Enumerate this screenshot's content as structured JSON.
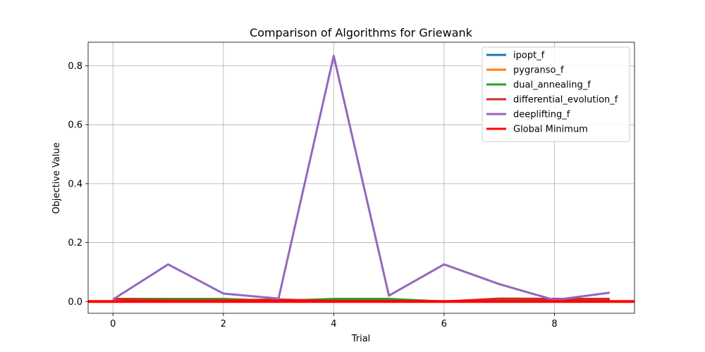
{
  "chart_data": {
    "type": "line",
    "title": "Comparison of Algorithms for Griewank",
    "xlabel": "Trial",
    "ylabel": "Objective Value",
    "xlim": [
      -0.45,
      9.45
    ],
    "ylim": [
      -0.04,
      0.88
    ],
    "xticks": [
      0,
      2,
      4,
      6,
      8
    ],
    "yticks": [
      0.0,
      0.2,
      0.4,
      0.6,
      0.8
    ],
    "xtick_labels": [
      "0",
      "2",
      "4",
      "6",
      "8"
    ],
    "ytick_labels": [
      "0.0",
      "0.2",
      "0.4",
      "0.6",
      "0.8"
    ],
    "grid": true,
    "legend_position": "top-right",
    "x": [
      0,
      1,
      2,
      3,
      4,
      5,
      6,
      7,
      8,
      9
    ],
    "series": [
      {
        "name": "ipopt_f",
        "color": "#1f77b4",
        "values": [
          0,
          0,
          0,
          0,
          0,
          0,
          0,
          0,
          0,
          0
        ]
      },
      {
        "name": "pygranso_f",
        "color": "#ff7f0e",
        "values": [
          0,
          0,
          0,
          0,
          0,
          0,
          0,
          0,
          0,
          0
        ]
      },
      {
        "name": "dual_annealing_f",
        "color": "#2ca02c",
        "values": [
          0.009,
          0.009,
          0.009,
          0.002,
          0.009,
          0.009,
          0.0,
          0.007,
          0.007,
          0.007
        ]
      },
      {
        "name": "differential_evolution_f",
        "color": "#d62728",
        "values": [
          0.009,
          0.004,
          0.004,
          0.007,
          0.002,
          0.002,
          0.0,
          0.01,
          0.009,
          0.009
        ]
      },
      {
        "name": "deeplifting_f",
        "color": "#9467bd",
        "values": [
          0.007,
          0.126,
          0.027,
          0.01,
          0.834,
          0.02,
          0.126,
          0.059,
          0.005,
          0.03
        ]
      }
    ],
    "global_minimum": {
      "name": "Global Minimum",
      "color": "#ff0000",
      "value": 0.0
    }
  }
}
